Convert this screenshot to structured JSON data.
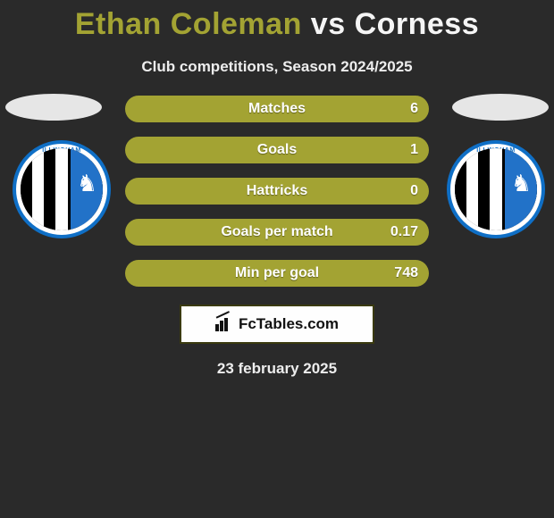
{
  "title": {
    "player1": "Ethan Coleman",
    "separator": "vs",
    "player2": "Corness"
  },
  "subtitle": "Club competitions, Season 2024/2025",
  "colors": {
    "background": "#2a2a2a",
    "player1_accent": "#a3a333",
    "player2_accent": "#8c8c8c",
    "bar_background": "#545420",
    "text": "#ffffff",
    "brand_bg": "#fefefe",
    "brand_border": "#3a3a0f"
  },
  "stats": [
    {
      "label": "Matches",
      "p1": "",
      "p2": "6",
      "p1_width_pct": 0,
      "p2_width_pct": 0
    },
    {
      "label": "Goals",
      "p1": "",
      "p2": "1",
      "p1_width_pct": 0,
      "p2_width_pct": 0
    },
    {
      "label": "Hattricks",
      "p1": "",
      "p2": "0",
      "p1_width_pct": 0,
      "p2_width_pct": 0
    },
    {
      "label": "Goals per match",
      "p1": "",
      "p2": "0.17",
      "p1_width_pct": 0,
      "p2_width_pct": 0
    },
    {
      "label": "Min per goal",
      "p1": "",
      "p2": "748",
      "p1_width_pct": 0,
      "p2_width_pct": 0
    }
  ],
  "brand": "FcTables.com",
  "date": "23 february 2025"
}
